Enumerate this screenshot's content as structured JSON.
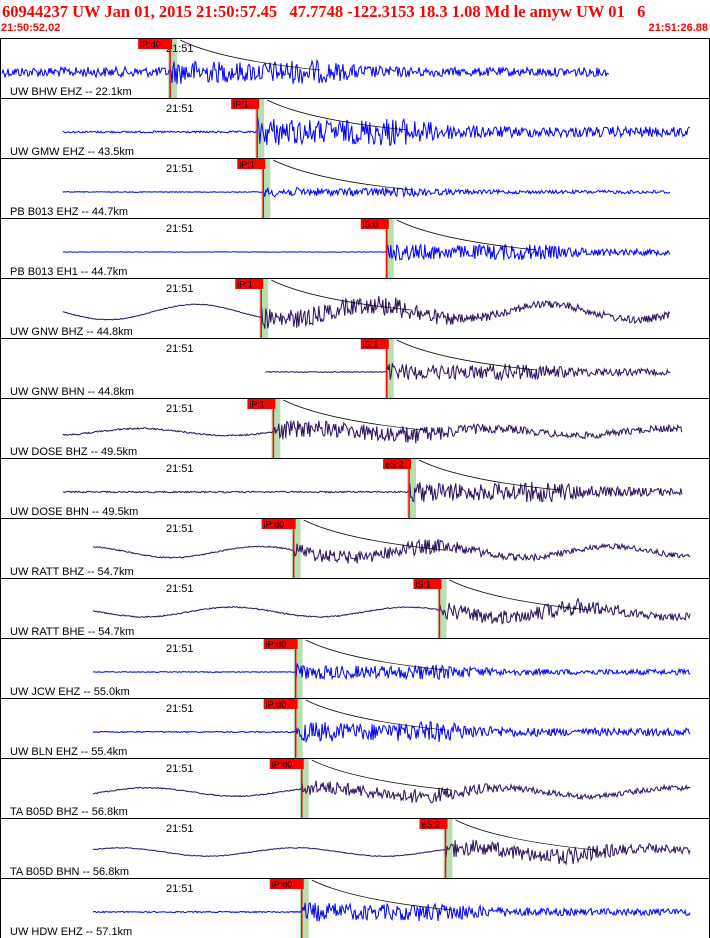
{
  "header": {
    "title": "60944237 UW Jan 01, 2015 21:50:57.45   47.7748 -122.3153 18.3 1.08 Md le amyw UW 01   6",
    "start_time": "21:50:52.02",
    "end_time": "21:51:26.88"
  },
  "colors": {
    "header_text": "#ff0000",
    "blue_trace": "#0000ff",
    "dark_trace": "#2b0f5c",
    "pick_flag": "#ff0000",
    "pick_window": "#b7e0b0",
    "panel_border": "#000000"
  },
  "chart_data": {
    "type": "line",
    "time_window": [
      "21:50:52.02",
      "21:51:26.88"
    ],
    "minute_tick_label": "21:51",
    "panels": [
      {
        "station": "UW BHW EHZ -- 22.1km",
        "pick_label": "iP:d0",
        "pick_time": 8.3,
        "color": "blue",
        "trace_start": 0.0,
        "trace_end": 30.0,
        "pre_amp": 0.25,
        "post_amp": 0.65,
        "wave": 0.0
      },
      {
        "station": "UW GMW EHZ -- 43.5km",
        "pick_label": "iP:1",
        "pick_time": 12.6,
        "color": "blue",
        "trace_start": 3.0,
        "trace_end": 34.0,
        "pre_amp": 0.05,
        "post_amp": 0.75,
        "wave": 0.0
      },
      {
        "station": "PB B013 EHZ -- 44.7km",
        "pick_label": "iP:1",
        "pick_time": 12.9,
        "color": "blue",
        "trace_start": 3.0,
        "trace_end": 33.0,
        "pre_amp": 0.02,
        "post_amp": 0.25,
        "wave": 0.0
      },
      {
        "station": "PB B013 EH1 -- 44.7km",
        "pick_label": "iS:0",
        "pick_time": 19.0,
        "color": "blue",
        "trace_start": 3.0,
        "trace_end": 33.0,
        "pre_amp": 0.01,
        "post_amp": 0.45,
        "wave": 0.0
      },
      {
        "station": "UW GNW BHZ -- 44.8km",
        "pick_label": "iP:1",
        "pick_time": 12.8,
        "color": "dark",
        "trace_start": 3.0,
        "trace_end": 33.0,
        "pre_amp": 0.02,
        "post_amp": 0.55,
        "wave": 0.55
      },
      {
        "station": "UW GNW BHN -- 44.8km",
        "pick_label": "iS:1",
        "pick_time": 19.0,
        "color": "dark",
        "trace_start": 13.0,
        "trace_end": 33.0,
        "pre_amp": 0.02,
        "post_amp": 0.45,
        "wave": 0.0
      },
      {
        "station": "UW DOSE BHZ -- 49.5km",
        "pick_label": "iP:1",
        "pick_time": 13.4,
        "color": "dark",
        "trace_start": 3.0,
        "trace_end": 33.6,
        "pre_amp": 0.04,
        "post_amp": 0.5,
        "wave": 0.25
      },
      {
        "station": "UW DOSE BHN -- 49.5km",
        "pick_label": "eS:2",
        "pick_time": 20.1,
        "color": "dark",
        "trace_start": 3.0,
        "trace_end": 33.6,
        "pre_amp": 0.04,
        "post_amp": 0.55,
        "wave": 0.0
      },
      {
        "station": "UW RATT BHZ -- 54.7km",
        "pick_label": "iP:d0",
        "pick_time": 14.4,
        "color": "dark",
        "trace_start": 4.5,
        "trace_end": 34.0,
        "pre_amp": 0.03,
        "post_amp": 0.4,
        "wave": 0.4
      },
      {
        "station": "UW RATT BHE -- 54.7km",
        "pick_label": "iS:1",
        "pick_time": 21.6,
        "color": "dark",
        "trace_start": 4.5,
        "trace_end": 34.0,
        "pre_amp": 0.03,
        "post_amp": 0.45,
        "wave": 0.35
      },
      {
        "station": "UW JCW EHZ -- 55.0km",
        "pick_label": "iP:d0",
        "pick_time": 14.5,
        "color": "blue",
        "trace_start": 4.5,
        "trace_end": 34.0,
        "pre_amp": 0.02,
        "post_amp": 0.4,
        "wave": 0.0
      },
      {
        "station": "UW BLN EHZ -- 55.4km",
        "pick_label": "iP:d0",
        "pick_time": 14.5,
        "color": "blue",
        "trace_start": 4.5,
        "trace_end": 34.0,
        "pre_amp": 0.03,
        "post_amp": 0.55,
        "wave": 0.0
      },
      {
        "station": "TA B05D BHZ -- 56.8km",
        "pick_label": "iP:d0",
        "pick_time": 14.8,
        "color": "dark",
        "trace_start": 4.5,
        "trace_end": 34.0,
        "pre_amp": 0.03,
        "post_amp": 0.4,
        "wave": 0.3
      },
      {
        "station": "TA B05D BHN -- 56.8km",
        "pick_label": "eS:2",
        "pick_time": 21.9,
        "color": "dark",
        "trace_start": 4.5,
        "trace_end": 34.0,
        "pre_amp": 0.02,
        "post_amp": 0.45,
        "wave": 0.3
      },
      {
        "station": "UW HDW EHZ -- 57.1km",
        "pick_label": "iP:d0",
        "pick_time": 14.8,
        "color": "blue",
        "trace_start": 4.5,
        "trace_end": 34.0,
        "pre_amp": 0.03,
        "post_amp": 0.5,
        "wave": 0.0
      }
    ]
  }
}
